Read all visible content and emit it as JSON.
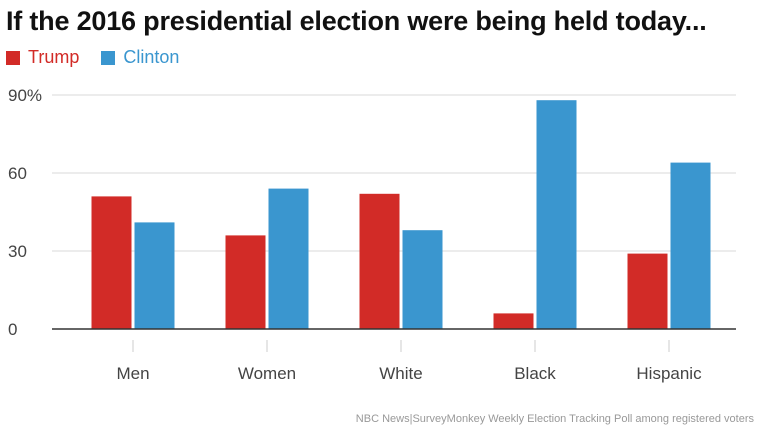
{
  "title": "If the 2016 presidential election were being held today...",
  "source": "NBC News|SurveyMonkey Weekly Election Tracking Poll among registered voters",
  "colors": {
    "trump": "#d22b27",
    "clinton": "#3a96cf",
    "grid": "#d9d9d9",
    "axis": "#333333",
    "text": "#444444"
  },
  "chart_data": {
    "type": "bar",
    "title": "If the 2016 presidential election were being held today...",
    "categories": [
      "Men",
      "Women",
      "White",
      "Black",
      "Hispanic"
    ],
    "series": [
      {
        "name": "Trump",
        "color": "#d22b27",
        "values": [
          51,
          36,
          52,
          6,
          29
        ]
      },
      {
        "name": "Clinton",
        "color": "#3a96cf",
        "values": [
          41,
          54,
          38,
          88,
          64
        ]
      }
    ],
    "yticks": [
      "0",
      "30",
      "60",
      "90%"
    ],
    "ytick_values": [
      0,
      30,
      60,
      90
    ],
    "ylim": [
      0,
      90
    ],
    "xlabel": "",
    "ylabel": "",
    "grid": true,
    "legend_position": "top-left"
  }
}
